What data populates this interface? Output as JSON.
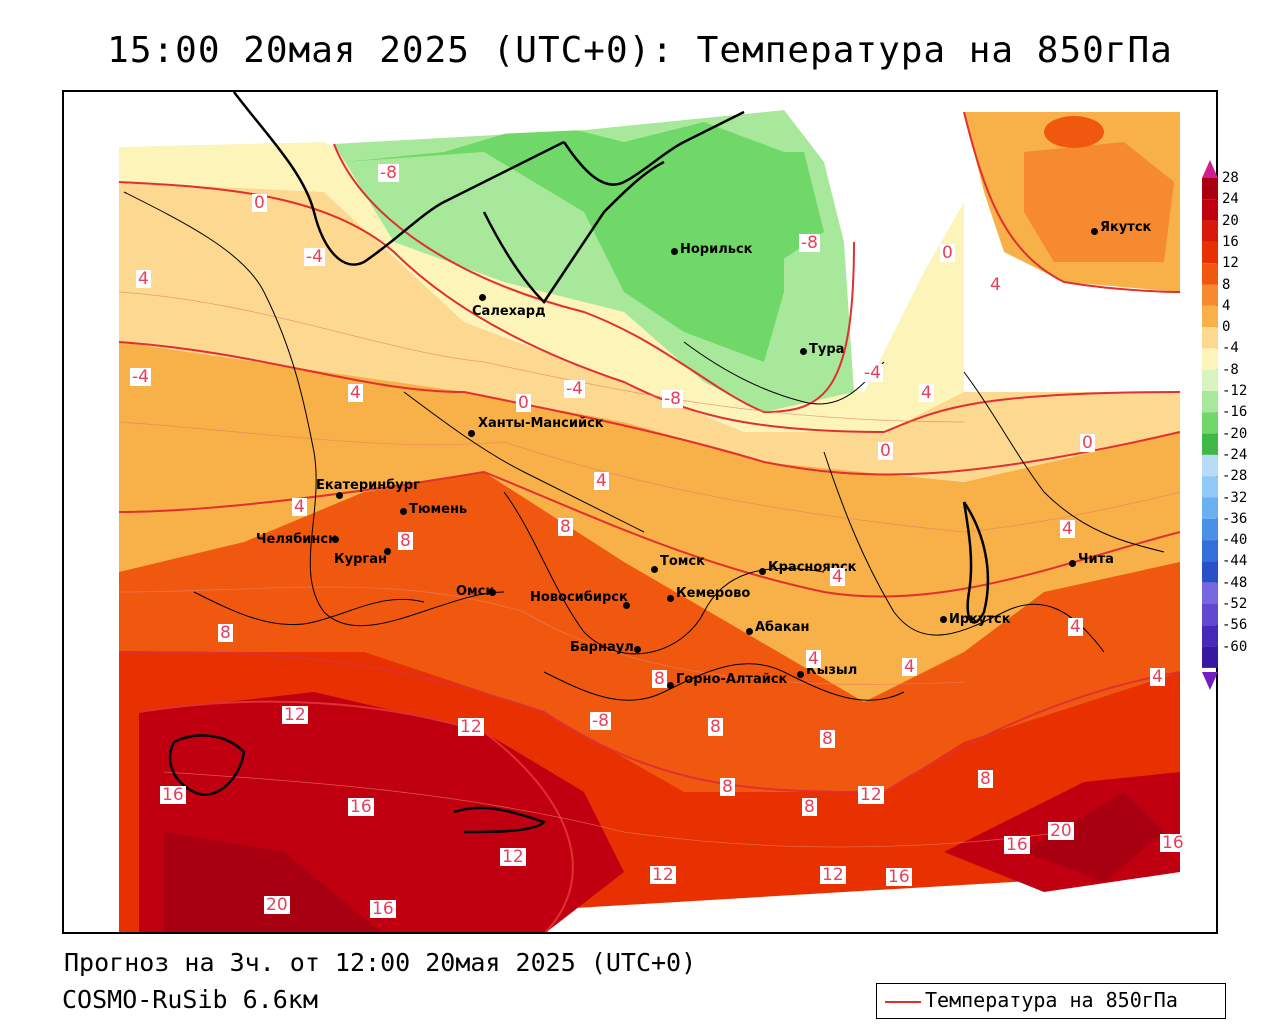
{
  "header": {
    "title": "15:00 20мая 2025 (UTC+0): Температура на 850гПа"
  },
  "footer": {
    "forecast": "Прогноз на 3ч. от 12:00 20мая 2025 (UTC+0)",
    "model": "COSMO-RuSib 6.6км"
  },
  "legend": {
    "label": "Температура на 850гПа",
    "line_color": "#e03030"
  },
  "colorbar": {
    "labels": [
      "28",
      "24",
      "20",
      "16",
      "12",
      "8",
      "4",
      "0",
      "-4",
      "-8",
      "-12",
      "-16",
      "-20",
      "-24",
      "-28",
      "-32",
      "-36",
      "-40",
      "-44",
      "-48",
      "-52",
      "-56",
      "-60"
    ],
    "colors": [
      "#a80010",
      "#c00010",
      "#d81808",
      "#e83000",
      "#f05810",
      "#f58a30",
      "#f8b048",
      "#fcd890",
      "#fcf4b8",
      "#d8f4c0",
      "#a8e89a",
      "#70d868",
      "#40b848",
      "#b8dcf8",
      "#90c8f8",
      "#68b0f0",
      "#4890e8",
      "#3070d8",
      "#2850c8",
      "#7868e0",
      "#6048d0",
      "#4828b8",
      "#3818a0"
    ]
  },
  "cities": [
    {
      "name": "Норильск"
    },
    {
      "name": "Якутск"
    },
    {
      "name": "Салехард"
    },
    {
      "name": "Тура"
    },
    {
      "name": "Ханты-Мансийск"
    },
    {
      "name": "Екатеринбург"
    },
    {
      "name": "Тюмень"
    },
    {
      "name": "Челябинск"
    },
    {
      "name": "Курган"
    },
    {
      "name": "Омск"
    },
    {
      "name": "Новосибирск"
    },
    {
      "name": "Томск"
    },
    {
      "name": "Красноярск"
    },
    {
      "name": "Кемерово"
    },
    {
      "name": "Абакан"
    },
    {
      "name": "Барнаул"
    },
    {
      "name": "Иркутск"
    },
    {
      "name": "Чита"
    },
    {
      "name": "Горно-Алтайск"
    },
    {
      "name": "Кызыл"
    }
  ],
  "isolines": [
    {
      "text": "-8"
    },
    {
      "text": "0"
    },
    {
      "text": "-4"
    },
    {
      "text": "-8"
    },
    {
      "text": "4"
    },
    {
      "text": "0"
    },
    {
      "text": "4"
    },
    {
      "text": "-4"
    },
    {
      "text": "4"
    },
    {
      "text": "0"
    },
    {
      "text": "-4"
    },
    {
      "text": "-8"
    },
    {
      "text": "-4"
    },
    {
      "text": "4"
    },
    {
      "text": "0"
    },
    {
      "text": "0"
    },
    {
      "text": "4"
    },
    {
      "text": "4"
    },
    {
      "text": "8"
    },
    {
      "text": "8"
    },
    {
      "text": "4"
    },
    {
      "text": "4"
    },
    {
      "text": "8"
    },
    {
      "text": "4"
    },
    {
      "text": "12"
    },
    {
      "text": "12"
    },
    {
      "text": "16"
    },
    {
      "text": "16"
    },
    {
      "text": "12"
    },
    {
      "text": "8"
    },
    {
      "text": "8"
    },
    {
      "text": "8"
    },
    {
      "text": "8"
    },
    {
      "text": "4"
    },
    {
      "text": "8"
    },
    {
      "text": "12"
    },
    {
      "text": "12"
    },
    {
      "text": "20"
    },
    {
      "text": "16"
    },
    {
      "text": "16"
    },
    {
      "text": "20"
    },
    {
      "text": "16"
    },
    {
      "text": "12"
    },
    {
      "text": "16"
    },
    {
      "text": "4"
    },
    {
      "text": "8"
    },
    {
      "text": "-8"
    },
    {
      "text": "4"
    }
  ]
}
